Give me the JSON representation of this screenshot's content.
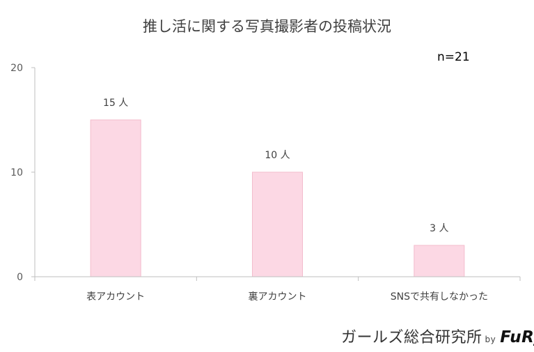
{
  "chart_data": {
    "type": "bar",
    "title": "推し活に関する写真撮影者の投稿状況",
    "annotation": "n=21",
    "categories": [
      "表アカウント",
      "裏アカウント",
      "SNSで共有しなかった"
    ],
    "values": [
      15,
      10,
      3
    ],
    "data_labels": [
      "15 人",
      "10 人",
      "3 人"
    ],
    "ylim": [
      0,
      20
    ],
    "yticks": [
      0,
      10,
      20
    ],
    "grid": false,
    "legend": "none",
    "bar_color": "#fcd8e4",
    "bar_border": "#f3bccd",
    "axis_color": "#bfbfbf"
  },
  "footer": {
    "text": "ガールズ総合研究所",
    "by": "by",
    "brand": "FuRyu"
  }
}
